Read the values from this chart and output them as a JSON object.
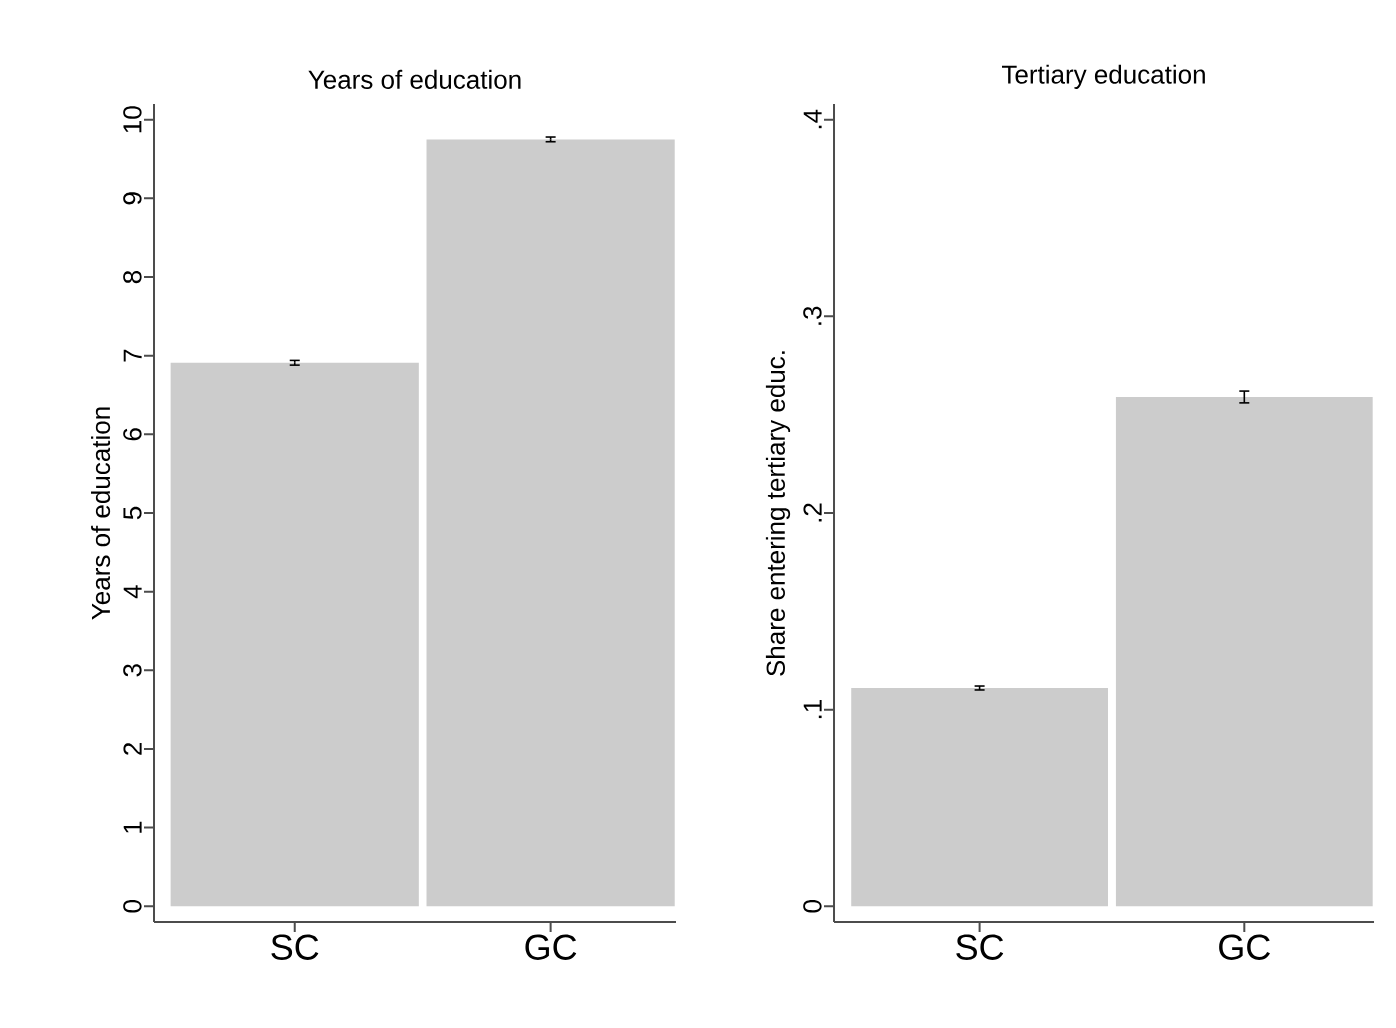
{
  "chart_data": [
    {
      "type": "bar",
      "title": "Years of education",
      "ylabel": "Years of education",
      "categories": [
        "SC",
        "GC"
      ],
      "values": [
        6.91,
        9.75
      ],
      "errors": [
        0.03,
        0.03
      ],
      "color": "#cccccc",
      "ylim": [
        -0.2,
        10.2
      ],
      "yticks": [
        0,
        1,
        2,
        3,
        4,
        5,
        6,
        7,
        8,
        9,
        10
      ]
    },
    {
      "type": "bar",
      "title": "Tertiary education",
      "ylabel": "Share entering tertiary educ.",
      "categories": [
        "SC",
        "GC"
      ],
      "values": [
        0.111,
        0.259
      ],
      "errors": [
        0.001,
        0.003
      ],
      "color": "#cccccc",
      "ylim": [
        -0.008,
        0.408
      ],
      "yticks": [
        0,
        {
          "value": 0.1,
          "label": ".1"
        },
        {
          "value": 0.2,
          "label": ".2"
        },
        {
          "value": 0.3,
          "label": ".3"
        },
        {
          "value": 0.4,
          "label": ".4"
        }
      ]
    }
  ]
}
